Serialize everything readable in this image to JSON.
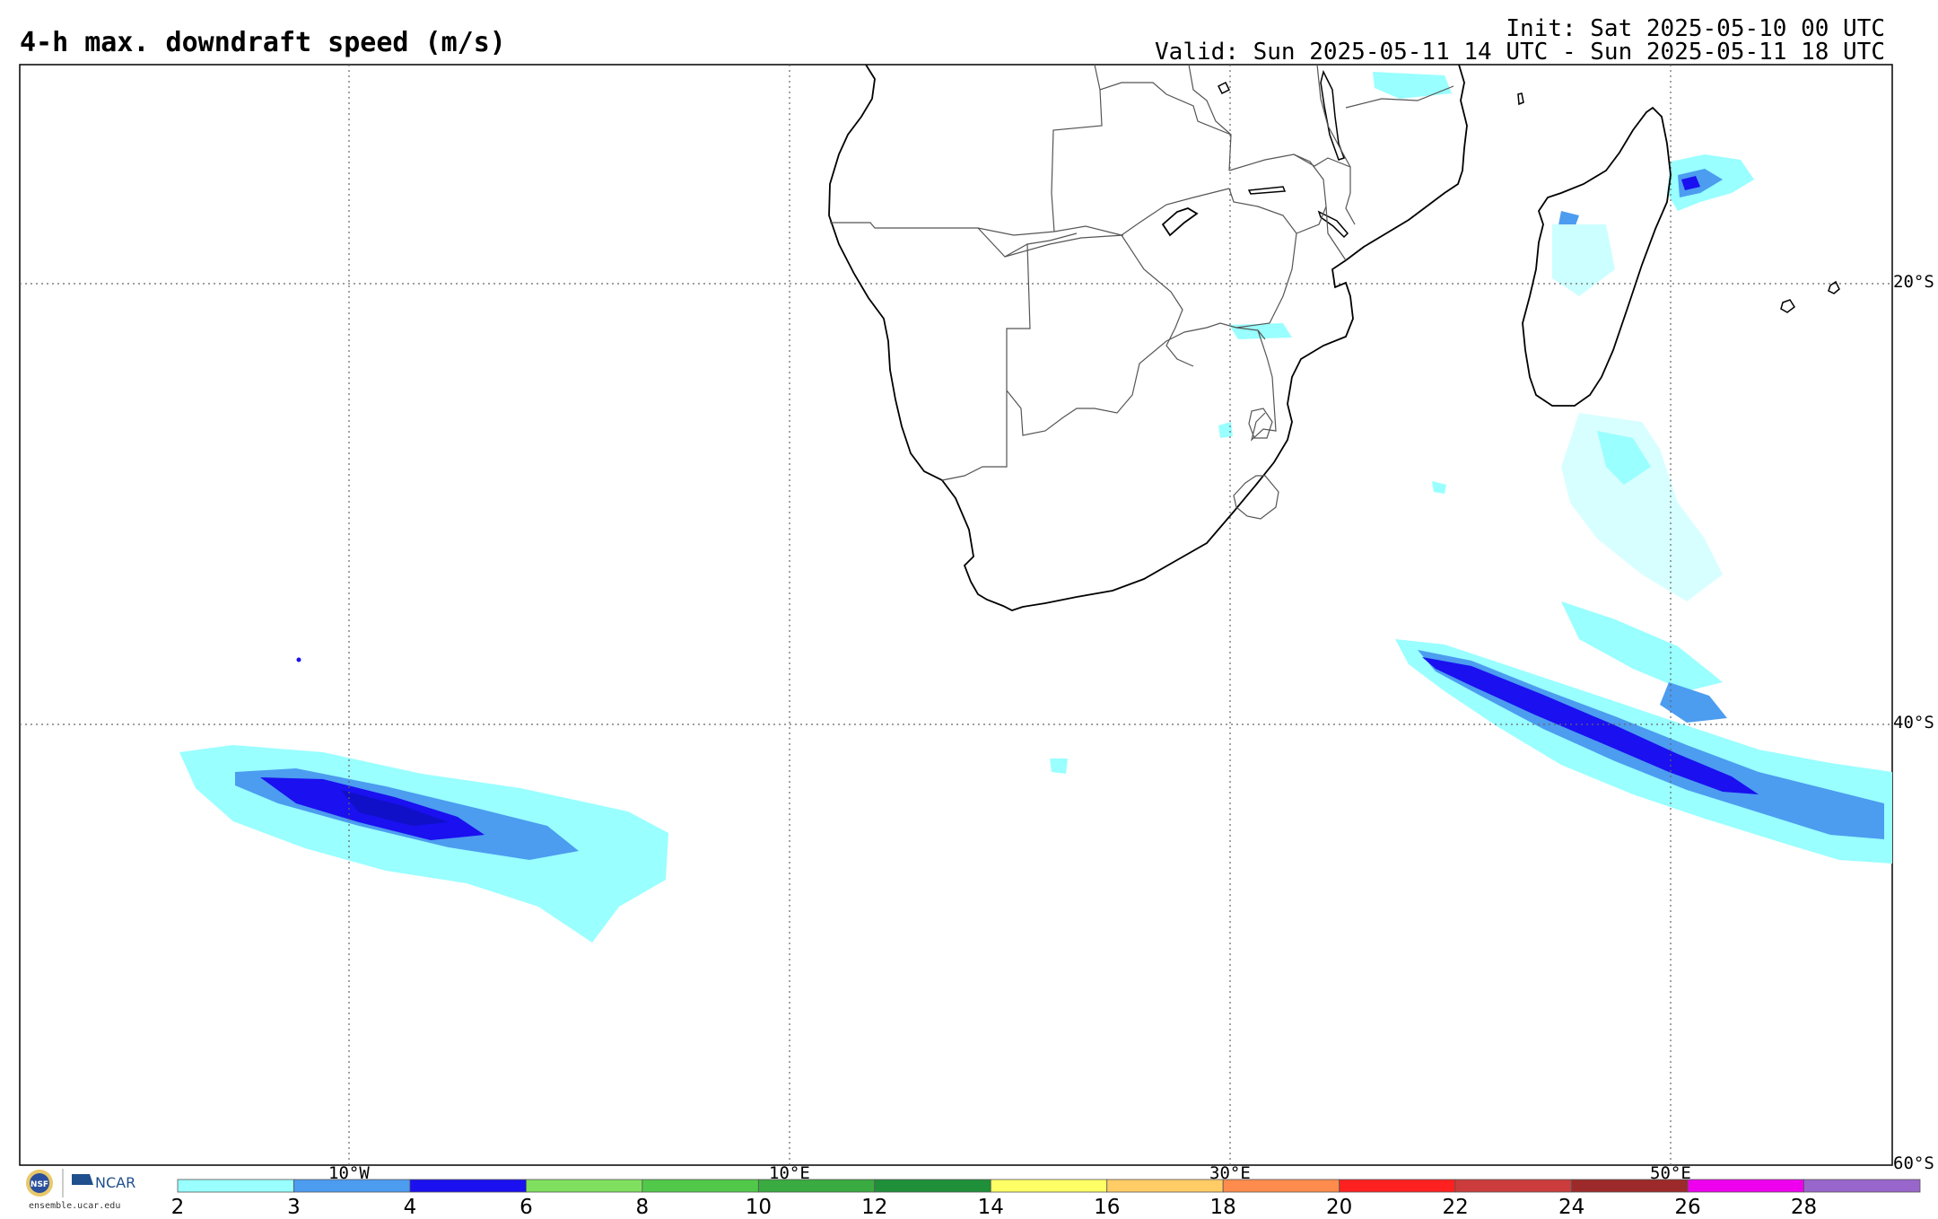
{
  "header": {
    "title": "4-h max. downdraft speed (m/s)",
    "init": "Init: Sat 2025-05-10 00 UTC",
    "valid": "Valid: Sun 2025-05-11 14 UTC - Sun 2025-05-11 18 UTC"
  },
  "map": {
    "grid_style": "dotted",
    "longitude_labels": [
      "10°W",
      "10°E",
      "30°E",
      "50°E"
    ],
    "latitude_labels": [
      "20°S",
      "40°S",
      "60°S"
    ],
    "land_fill": "#ffffff",
    "coastline_color": "#000000",
    "border_color": "#555555"
  },
  "colorbar": {
    "tick_labels": [
      "2",
      "3",
      "4",
      "6",
      "8",
      "10",
      "12",
      "14",
      "16",
      "18",
      "20",
      "22",
      "24",
      "26",
      "28"
    ],
    "colors": [
      "#99ffff",
      "#4c9cf0",
      "#1a10f0",
      "#7fe060",
      "#52c84a",
      "#3aab40",
      "#1f8f3a",
      "#ffff66",
      "#ffcc66",
      "#ff8c4c",
      "#ff2020",
      "#cc3c3c",
      "#9c2a2a",
      "#ee00ee",
      "#9966cc"
    ]
  },
  "logos": {
    "nsf_icon": "nsf-seal-icon",
    "ncar_label": "NCAR",
    "url": "ensemble.ucar.edu"
  }
}
